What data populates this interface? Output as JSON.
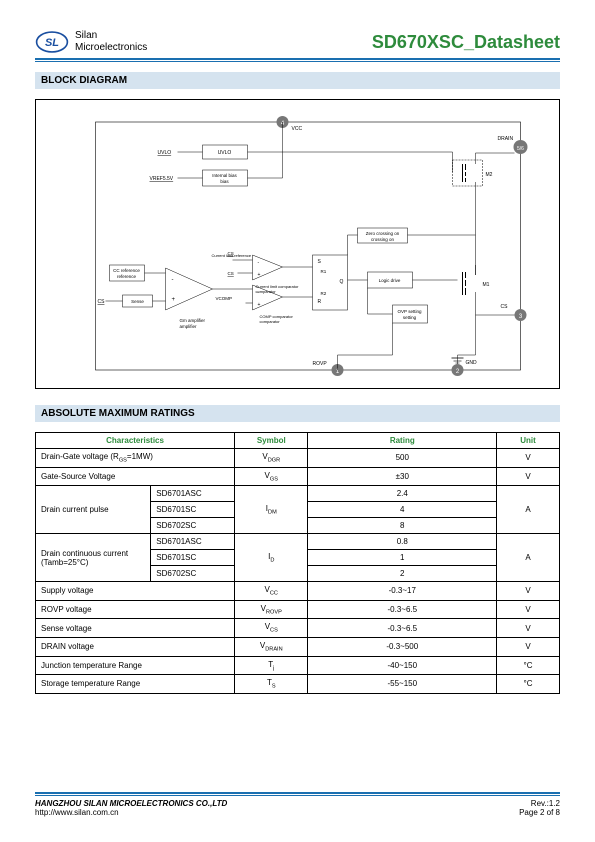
{
  "header": {
    "company_line1": "Silan",
    "company_line2": "Microelectronics",
    "doc_title": "SD670XSC_Datasheet"
  },
  "sections": {
    "block_diagram": "BLOCK DIAGRAM",
    "abs_max": "ABSOLUTE MAXIMUM RATINGS"
  },
  "diagram": {
    "pins": {
      "p1": "1",
      "p2": "2",
      "p3": "3",
      "p4": "4",
      "p56": "5/6"
    },
    "labels": {
      "vcc": "VCC",
      "drain": "DRAIN",
      "uvlo_sig": "UVLO",
      "uvlo_box": "UVLO",
      "vref": "VREF5.5V",
      "internal_bias": "Internal bias",
      "zero_cross": "Zero crossing on",
      "cs": "CS",
      "cs2": "CS",
      "cs3": "CS",
      "cur_limit_ref": "Current limit reference",
      "cur_limit_comp": "Current limit comparator",
      "comp_comp": "COMP comparator",
      "vcomp": "VCOMP",
      "cc_ref": "CC reference",
      "sense": "Sense",
      "gm_amp": "Gm amplifier",
      "r1": "R1",
      "r2": "R2",
      "s": "S",
      "r": "R",
      "q": "Q",
      "logic_drive": "Logic drive",
      "ovp_setting": "OVP setting",
      "m1": "M1",
      "m2": "M2",
      "rovp": "ROVP",
      "gnd": "GND"
    }
  },
  "table": {
    "headers": {
      "char": "Characteristics",
      "symbol": "Symbol",
      "rating": "Rating",
      "unit": "Unit"
    },
    "rows": {
      "r1": {
        "char": "Drain-Gate voltage (R<sub>GS</sub>=1MW)",
        "sym": "V<sub>DGR</sub>",
        "rating": "500",
        "unit": "V"
      },
      "r2": {
        "char": "Gate-Source Voltage",
        "sym": "V<sub>GS</sub>",
        "rating": "±30",
        "unit": "V"
      },
      "r3": {
        "char": "Drain current pulse",
        "sub1": "SD6701ASC",
        "sub2": "SD6701SC",
        "sub3": "SD6702SC",
        "sym": "I<sub>DM</sub>",
        "v1": "2.4",
        "v2": "4",
        "v3": "8",
        "unit": "A"
      },
      "r4": {
        "char1": "Drain continuous current",
        "char2": "(Tamb=25°C)",
        "sub1": "SD6701ASC",
        "sub2": "SD6701SC",
        "sub3": "SD6702SC",
        "sym": "I<sub>D</sub>",
        "v1": "0.8",
        "v2": "1",
        "v3": "2",
        "unit": "A"
      },
      "r5": {
        "char": "Supply voltage",
        "sym": "V<sub>CC</sub>",
        "rating": "-0.3~17",
        "unit": "V"
      },
      "r6": {
        "char": "ROVP voltage",
        "sym": "V<sub>ROVP</sub>",
        "rating": "-0.3~6.5",
        "unit": "V"
      },
      "r7": {
        "char": "Sense voltage",
        "sym": "V<sub>CS</sub>",
        "rating": "-0.3~6.5",
        "unit": "V"
      },
      "r8": {
        "char": "DRAIN voltage",
        "sym": "V<sub>DRAIN</sub>",
        "rating": "-0.3~500",
        "unit": "V"
      },
      "r9": {
        "char": "Junction temperature Range",
        "sym": "T<sub>j</sub>",
        "rating": "-40~150",
        "unit": "°C"
      },
      "r10": {
        "char": "Storage temperature Range",
        "sym": "T<sub>S</sub>",
        "rating": "-55~150",
        "unit": "°C"
      }
    }
  },
  "footer": {
    "company": "HANGZHOU SILAN MICROELECTRONICS CO.,LTD",
    "url": "http://www.silan.com.cn",
    "rev": "Rev.:1.2",
    "page": "Page 2 of 8"
  }
}
